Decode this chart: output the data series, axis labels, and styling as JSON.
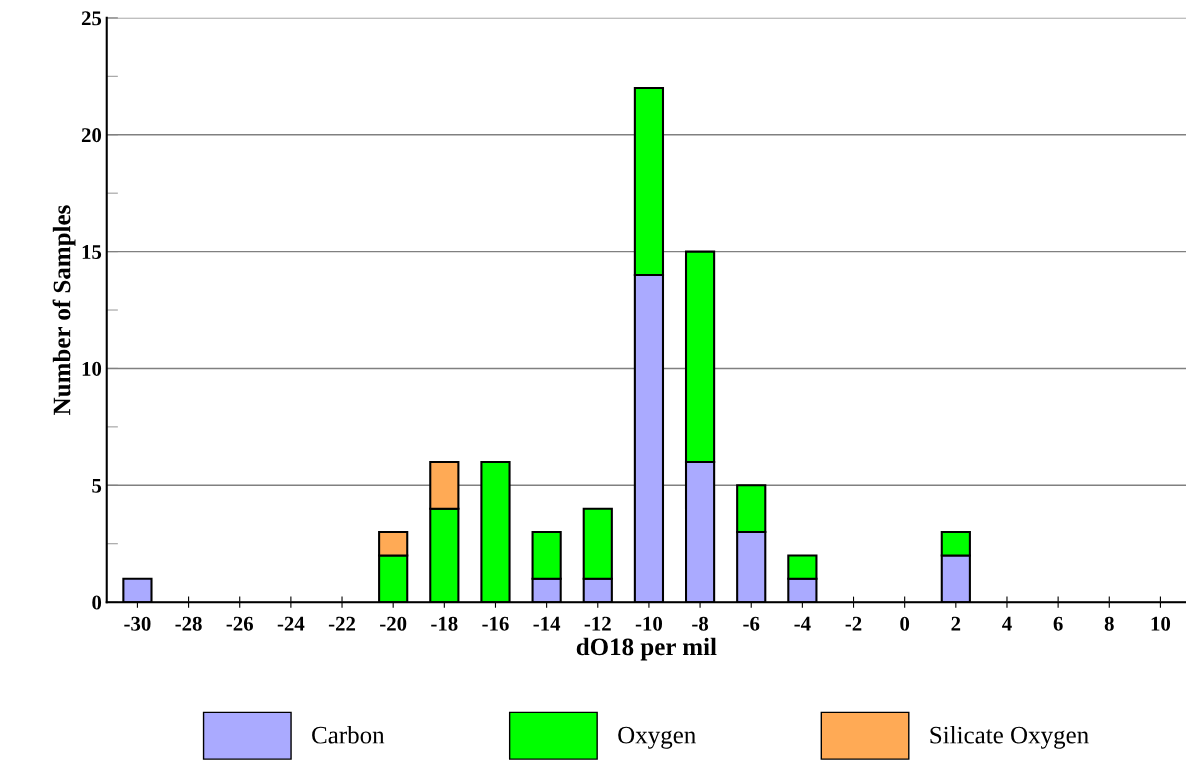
{
  "chart_data": {
    "type": "bar",
    "stacked": true,
    "xlabel": "dO18 per mil",
    "ylabel": "Number of Samples",
    "categories": [
      "-30",
      "-28",
      "-26",
      "-24",
      "-22",
      "-20",
      "-18",
      "-16",
      "-14",
      "-12",
      "-10",
      "-8",
      "-6",
      "-4",
      "-2",
      "0",
      "2",
      "4",
      "6",
      "8",
      "10"
    ],
    "series": [
      {
        "name": "Carbon",
        "color": "#aaaaff",
        "values": [
          1,
          0,
          0,
          0,
          0,
          0,
          0,
          0,
          1,
          1,
          14,
          6,
          3,
          1,
          0,
          0,
          2,
          0,
          0,
          0,
          0
        ]
      },
      {
        "name": "Oxygen",
        "color": "#00ff00",
        "values": [
          0,
          0,
          0,
          0,
          0,
          2,
          4,
          6,
          2,
          3,
          8,
          9,
          2,
          1,
          0,
          0,
          1,
          0,
          0,
          0,
          0
        ]
      },
      {
        "name": "Silicate Oxygen",
        "color": "#ffaa55",
        "values": [
          0,
          0,
          0,
          0,
          0,
          1,
          2,
          0,
          0,
          0,
          0,
          0,
          0,
          0,
          0,
          0,
          0,
          0,
          0,
          0,
          0
        ]
      }
    ],
    "ylim": [
      0,
      25
    ],
    "yticks": [
      0,
      {
        "value": 2.5,
        "label": null
      },
      5,
      {
        "value": 7.5,
        "label": null
      },
      10,
      {
        "value": 12.5,
        "label": null
      },
      15,
      {
        "value": 17.5,
        "label": null
      },
      20,
      {
        "value": 22.5,
        "label": null
      },
      25
    ],
    "grid": "y",
    "legend": "bottom"
  }
}
